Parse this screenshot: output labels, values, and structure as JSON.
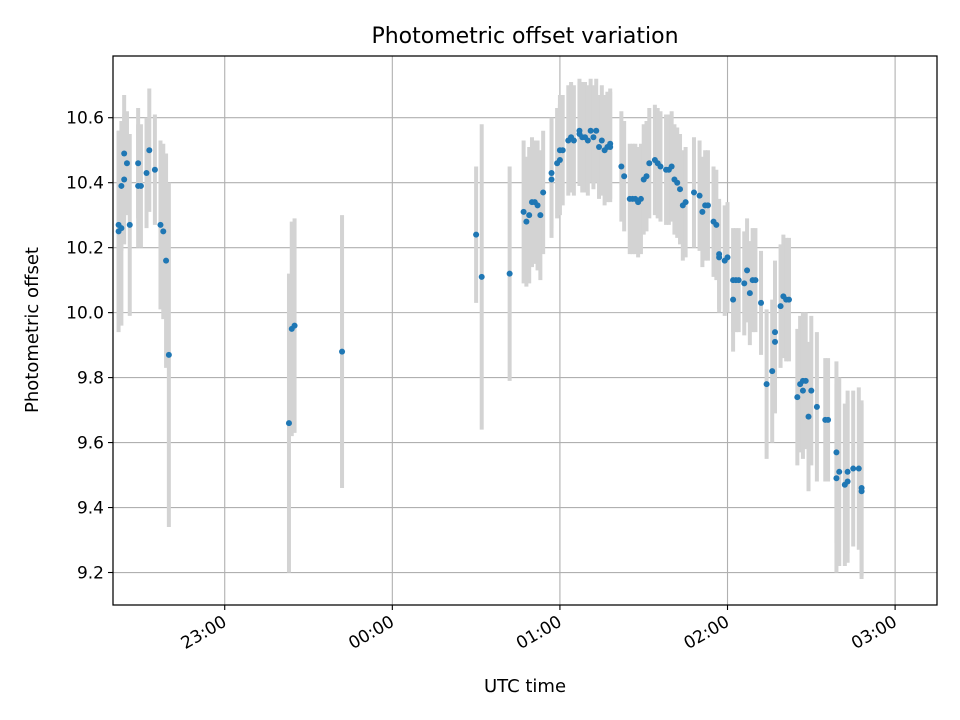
{
  "chart_data": {
    "type": "scatter",
    "title": "Photometric offset variation",
    "xlabel": "UTC time",
    "ylabel": "Photometric offset",
    "x_unit": "UTC hh:mm, counted from 00:00; 23:xx times belong to the previous day",
    "xlim": [
      "22:20",
      "03:15"
    ],
    "ylim": [
      9.1,
      10.79
    ],
    "x_ticks": [
      "23:00",
      "00:00",
      "01:00",
      "02:00",
      "03:00"
    ],
    "y_ticks": [
      9.2,
      9.4,
      9.6,
      9.8,
      10.0,
      10.2,
      10.4,
      10.6
    ],
    "grid": true,
    "colors": {
      "points": "#1f77b4",
      "errorbars": "#d3d3d3",
      "grid": "#b0b0b0"
    },
    "series": [
      {
        "points": [
          [
            "22:22",
            10.27,
            0.29
          ],
          [
            "22:22",
            10.25,
            0.31
          ],
          [
            "22:23",
            10.26,
            0.3
          ],
          [
            "22:23",
            10.39,
            0.2
          ],
          [
            "22:24",
            10.41,
            0.2
          ],
          [
            "22:24",
            10.49,
            0.18
          ],
          [
            "22:25",
            10.46,
            0.16
          ],
          [
            "22:26",
            10.27,
            0.28
          ],
          [
            "22:29",
            10.39,
            0.19
          ],
          [
            "22:29",
            10.46,
            0.17
          ],
          [
            "22:30",
            10.39,
            0.19
          ],
          [
            "22:32",
            10.43,
            0.17
          ],
          [
            "22:33",
            10.5,
            0.19
          ],
          [
            "22:35",
            10.44,
            0.17
          ],
          [
            "22:37",
            10.27,
            0.26
          ],
          [
            "22:38",
            10.25,
            0.27
          ],
          [
            "22:39",
            10.16,
            0.33
          ],
          [
            "22:40",
            9.87,
            0.53
          ],
          [
            "23:23",
            9.66,
            0.46
          ],
          [
            "23:24",
            9.95,
            0.33
          ],
          [
            "23:25",
            9.96,
            0.33
          ],
          [
            "23:42",
            9.88,
            0.42
          ],
          [
            "00:30",
            10.24,
            0.21
          ],
          [
            "00:32",
            10.11,
            0.47
          ],
          [
            "00:42",
            10.12,
            0.33
          ],
          [
            "00:47",
            10.31,
            0.22
          ],
          [
            "00:48",
            10.28,
            0.2
          ],
          [
            "00:49",
            10.3,
            0.21
          ],
          [
            "00:50",
            10.34,
            0.2
          ],
          [
            "00:51",
            10.34,
            0.19
          ],
          [
            "00:52",
            10.33,
            0.2
          ],
          [
            "00:53",
            10.3,
            0.2
          ],
          [
            "00:54",
            10.37,
            0.19
          ],
          [
            "00:57",
            10.41,
            0.18
          ],
          [
            "00:57",
            10.43,
            0.17
          ],
          [
            "00:59",
            10.46,
            0.17
          ],
          [
            "01:00",
            10.47,
            0.17
          ],
          [
            "01:00",
            10.5,
            0.17
          ],
          [
            "01:01",
            10.5,
            0.17
          ],
          [
            "01:03",
            10.53,
            0.17
          ],
          [
            "01:04",
            10.54,
            0.17
          ],
          [
            "01:05",
            10.53,
            0.17
          ],
          [
            "01:07",
            10.55,
            0.16
          ],
          [
            "01:07",
            10.56,
            0.16
          ],
          [
            "01:08",
            10.54,
            0.17
          ],
          [
            "01:09",
            10.54,
            0.17
          ],
          [
            "01:10",
            10.53,
            0.17
          ],
          [
            "01:11",
            10.56,
            0.16
          ],
          [
            "01:12",
            10.54,
            0.16
          ],
          [
            "01:13",
            10.56,
            0.16
          ],
          [
            "01:14",
            10.51,
            0.16
          ],
          [
            "01:15",
            10.53,
            0.17
          ],
          [
            "01:16",
            10.5,
            0.17
          ],
          [
            "01:17",
            10.51,
            0.17
          ],
          [
            "01:18",
            10.52,
            0.17
          ],
          [
            "01:18",
            10.51,
            0.17
          ],
          [
            "01:22",
            10.45,
            0.17
          ],
          [
            "01:23",
            10.42,
            0.17
          ],
          [
            "01:25",
            10.35,
            0.17
          ],
          [
            "01:26",
            10.35,
            0.17
          ],
          [
            "01:27",
            10.35,
            0.17
          ],
          [
            "01:28",
            10.34,
            0.17
          ],
          [
            "01:29",
            10.35,
            0.17
          ],
          [
            "01:30",
            10.41,
            0.17
          ],
          [
            "01:31",
            10.42,
            0.17
          ],
          [
            "01:32",
            10.46,
            0.17
          ],
          [
            "01:34",
            10.47,
            0.17
          ],
          [
            "01:35",
            10.46,
            0.17
          ],
          [
            "01:36",
            10.45,
            0.17
          ],
          [
            "01:38",
            10.44,
            0.17
          ],
          [
            "01:39",
            10.44,
            0.17
          ],
          [
            "01:40",
            10.45,
            0.17
          ],
          [
            "01:41",
            10.41,
            0.17
          ],
          [
            "01:42",
            10.4,
            0.17
          ],
          [
            "01:43",
            10.38,
            0.17
          ],
          [
            "01:44",
            10.33,
            0.17
          ],
          [
            "01:45",
            10.34,
            0.17
          ],
          [
            "01:48",
            10.37,
            0.17
          ],
          [
            "01:50",
            10.36,
            0.17
          ],
          [
            "01:51",
            10.31,
            0.17
          ],
          [
            "01:52",
            10.33,
            0.17
          ],
          [
            "01:53",
            10.33,
            0.17
          ],
          [
            "01:55",
            10.28,
            0.17
          ],
          [
            "01:56",
            10.27,
            0.17
          ],
          [
            "01:57",
            10.18,
            0.17
          ],
          [
            "01:57",
            10.17,
            0.17
          ],
          [
            "01:59",
            10.16,
            0.17
          ],
          [
            "02:00",
            10.17,
            0.17
          ],
          [
            "02:02",
            10.1,
            0.16
          ],
          [
            "02:02",
            10.04,
            0.16
          ],
          [
            "02:03",
            10.1,
            0.16
          ],
          [
            "02:04",
            10.1,
            0.16
          ],
          [
            "02:06",
            10.09,
            0.16
          ],
          [
            "02:07",
            10.13,
            0.16
          ],
          [
            "02:08",
            10.06,
            0.16
          ],
          [
            "02:09",
            10.1,
            0.16
          ],
          [
            "02:10",
            10.1,
            0.16
          ],
          [
            "02:12",
            10.03,
            0.16
          ],
          [
            "02:14",
            9.78,
            0.23
          ],
          [
            "02:16",
            9.82,
            0.22
          ],
          [
            "02:17",
            9.91,
            0.22
          ],
          [
            "02:17",
            9.94,
            0.22
          ],
          [
            "02:19",
            10.02,
            0.19
          ],
          [
            "02:20",
            10.05,
            0.19
          ],
          [
            "02:21",
            10.04,
            0.19
          ],
          [
            "02:22",
            10.04,
            0.19
          ],
          [
            "02:25",
            9.74,
            0.21
          ],
          [
            "02:26",
            9.78,
            0.21
          ],
          [
            "02:27",
            9.79,
            0.21
          ],
          [
            "02:27",
            9.76,
            0.21
          ],
          [
            "02:28",
            9.79,
            0.21
          ],
          [
            "02:29",
            9.68,
            0.23
          ],
          [
            "02:30",
            9.76,
            0.23
          ],
          [
            "02:32",
            9.71,
            0.23
          ],
          [
            "02:35",
            9.67,
            0.19
          ],
          [
            "02:36",
            9.67,
            0.19
          ],
          [
            "02:39",
            9.57,
            0.28
          ],
          [
            "02:39",
            9.49,
            0.29
          ],
          [
            "02:40",
            9.51,
            0.29
          ],
          [
            "02:42",
            9.47,
            0.25
          ],
          [
            "02:43",
            9.51,
            0.25
          ],
          [
            "02:43",
            9.48,
            0.25
          ],
          [
            "02:45",
            9.52,
            0.24
          ],
          [
            "02:47",
            9.52,
            0.25
          ],
          [
            "02:48",
            9.46,
            0.27
          ],
          [
            "02:48",
            9.45,
            0.27
          ]
        ]
      }
    ]
  }
}
